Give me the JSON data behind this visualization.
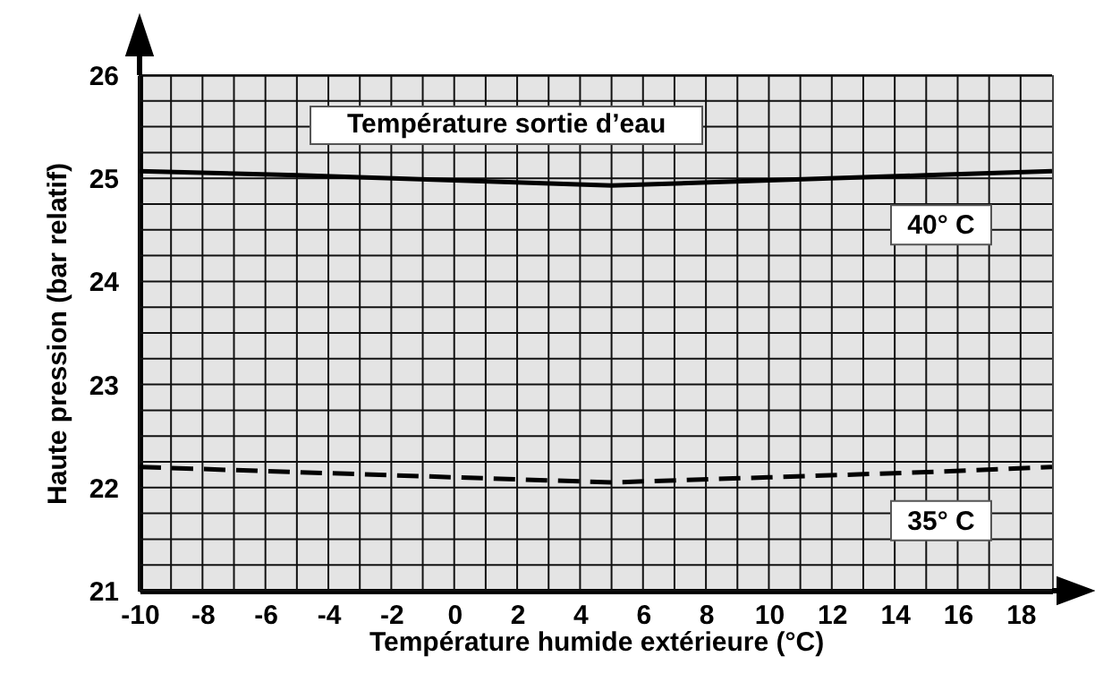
{
  "chart_data": {
    "type": "line",
    "xlabel": "Température humide extérieure  (°C)",
    "ylabel": "Haute pression  (bar relatif)",
    "annotations": [
      "Température sortie d’eau"
    ],
    "x": [
      -10,
      -5,
      0,
      5,
      10,
      15,
      19
    ],
    "series": [
      {
        "name": "40° C",
        "color": "#000000",
        "line_style": "solid",
        "values": [
          25.07,
          25.03,
          24.98,
          24.93,
          24.98,
          25.03,
          25.07
        ]
      },
      {
        "name": "35° C",
        "color": "#000000",
        "line_style": "dashed",
        "values": [
          22.2,
          22.15,
          22.1,
          22.05,
          22.1,
          22.15,
          22.2
        ]
      }
    ],
    "xlim": [
      -10,
      19
    ],
    "xticks": [
      -10,
      {
        "value": -9,
        "label": null
      },
      -8,
      {
        "value": -7,
        "label": null
      },
      -6,
      {
        "value": -5,
        "label": null
      },
      -4,
      {
        "value": -3,
        "label": null
      },
      -2,
      {
        "value": -1,
        "label": null
      },
      0,
      {
        "value": 1,
        "label": null
      },
      2,
      {
        "value": 3,
        "label": null
      },
      4,
      {
        "value": 5,
        "label": null
      },
      6,
      {
        "value": 7,
        "label": null
      },
      8,
      {
        "value": 9,
        "label": null
      },
      10,
      {
        "value": 11,
        "label": null
      },
      12,
      {
        "value": 13,
        "label": null
      },
      14,
      {
        "value": 15,
        "label": null
      },
      16,
      {
        "value": 17,
        "label": null
      },
      18
    ],
    "ylim": [
      21,
      26
    ],
    "yticks": [
      21,
      {
        "value": 21.25,
        "label": null
      },
      {
        "value": 21.5,
        "label": null
      },
      {
        "value": 21.75,
        "label": null
      },
      22,
      {
        "value": 22.25,
        "label": null
      },
      {
        "value": 22.5,
        "label": null
      },
      {
        "value": 22.75,
        "label": null
      },
      23,
      {
        "value": 23.25,
        "label": null
      },
      {
        "value": 23.5,
        "label": null
      },
      {
        "value": 23.75,
        "label": null
      },
      24,
      {
        "value": 24.25,
        "label": null
      },
      {
        "value": 24.5,
        "label": null
      },
      {
        "value": 24.75,
        "label": null
      },
      25,
      {
        "value": 25.25,
        "label": null
      },
      {
        "value": 25.5,
        "label": null
      },
      {
        "value": 25.75,
        "label": null
      },
      26
    ],
    "grid": true,
    "marker": "none"
  }
}
